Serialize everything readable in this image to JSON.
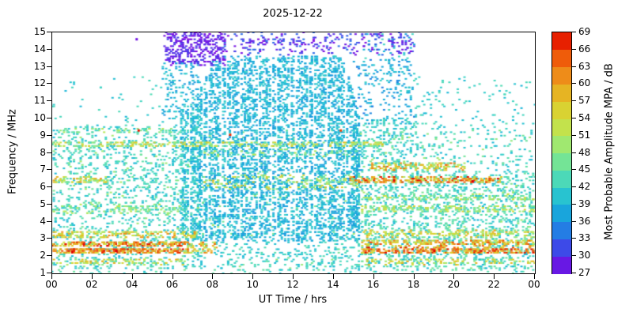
{
  "figure": {
    "background": "#ffffff"
  },
  "chart_data": {
    "type": "scatter",
    "title": "2025-12-22",
    "xlabel": "UT Time / hrs",
    "ylabel": "Frequency / MHz",
    "xlim": [
      0,
      24
    ],
    "ylim": [
      1,
      15
    ],
    "xtick_labels": [
      "00",
      "02",
      "04",
      "06",
      "08",
      "10",
      "12",
      "14",
      "16",
      "18",
      "20",
      "22",
      "00"
    ],
    "xtick_values": [
      0,
      2,
      4,
      6,
      8,
      10,
      12,
      14,
      16,
      18,
      20,
      22,
      24
    ],
    "ytick_labels": [
      "1",
      "2",
      "3",
      "4",
      "5",
      "6",
      "7",
      "8",
      "9",
      "10",
      "11",
      "12",
      "13",
      "14",
      "15"
    ],
    "ytick_values": [
      1,
      2,
      3,
      4,
      5,
      6,
      7,
      8,
      9,
      10,
      11,
      12,
      13,
      14,
      15
    ],
    "grid": false,
    "legend": false,
    "marker": {
      "w": 3,
      "h": 2
    },
    "colorbar": {
      "label": "Most Probable Amplitude MPA / dB",
      "min": 27,
      "max": 69,
      "tick_values": [
        27,
        30,
        33,
        36,
        39,
        42,
        45,
        48,
        51,
        54,
        57,
        60,
        63,
        66,
        69
      ],
      "tick_labels": [
        "27",
        "30",
        "33",
        "36",
        "39",
        "42",
        "45",
        "48",
        "51",
        "54",
        "57",
        "60",
        "63",
        "66",
        "69"
      ],
      "stops": [
        [
          27,
          "#8000e0"
        ],
        [
          30,
          "#5030e8"
        ],
        [
          33,
          "#2a64e8"
        ],
        [
          36,
          "#1e96e0"
        ],
        [
          39,
          "#14b4d8"
        ],
        [
          42,
          "#3cd2c8"
        ],
        [
          45,
          "#5ce0a8"
        ],
        [
          48,
          "#8ce884"
        ],
        [
          51,
          "#b4e85c"
        ],
        [
          54,
          "#d2dc3c"
        ],
        [
          57,
          "#e0c828"
        ],
        [
          60,
          "#eca01e"
        ],
        [
          63,
          "#f07814"
        ],
        [
          66,
          "#ee4000"
        ],
        [
          69,
          "#e00000"
        ]
      ]
    },
    "regions": [
      {
        "name": "background-left",
        "x": [
          0,
          7.6
        ],
        "y": [
          1.2,
          9.6
        ],
        "n": 1400,
        "db": [
          39,
          45
        ],
        "stripe": 8
      },
      {
        "name": "background-right-low",
        "x": [
          15.2,
          24
        ],
        "y": [
          1.2,
          7.0
        ],
        "n": 1600,
        "db": [
          39,
          46
        ],
        "stripe": 8
      },
      {
        "name": "background-right-mid",
        "x": [
          15.2,
          18.2
        ],
        "y": [
          7.0,
          10.0
        ],
        "n": 260,
        "db": [
          39,
          45
        ]
      },
      {
        "name": "background-right-upper",
        "x": [
          18.2,
          24
        ],
        "y": [
          7.0,
          9.8
        ],
        "n": 150,
        "db": [
          39,
          45
        ]
      },
      {
        "name": "green-sprinkle",
        "x": [
          0,
          24
        ],
        "y": [
          1.2,
          9.4
        ],
        "n": 520,
        "db": [
          44,
          50
        ]
      },
      {
        "name": "sparse-high-left",
        "x": [
          0,
          5.6
        ],
        "y": [
          9.6,
          12.4
        ],
        "n": 40,
        "db": [
          39,
          44
        ]
      },
      {
        "name": "sparse-high-right",
        "x": [
          15.5,
          18.0
        ],
        "y": [
          9.6,
          15.0
        ],
        "n": 150,
        "db": [
          36,
          43
        ]
      },
      {
        "name": "sparse-high-right2",
        "x": [
          18.0,
          19.5
        ],
        "y": [
          9.6,
          12.5
        ],
        "n": 40,
        "db": [
          39,
          44
        ]
      },
      {
        "name": "sparse-high-far-right",
        "x": [
          19.5,
          24
        ],
        "y": [
          9.6,
          12.4
        ],
        "n": 55,
        "db": [
          39,
          44
        ]
      },
      {
        "name": "dome-core",
        "x": [
          7.3,
          15.3
        ],
        "y": [
          2.9,
          13.6
        ],
        "n": 5200,
        "db": [
          36,
          42
        ],
        "stripe": 14,
        "envelope": [
          [
            7.3,
            11.5
          ],
          [
            8.0,
            13.4
          ],
          [
            8.6,
            13.7
          ],
          [
            14.3,
            13.7
          ],
          [
            14.9,
            12.0
          ],
          [
            15.3,
            10.0
          ]
        ]
      },
      {
        "name": "dome-onset",
        "x": [
          6.4,
          7.3
        ],
        "y": [
          2.9,
          10.8
        ],
        "n": 420,
        "db": [
          37,
          43
        ],
        "stripe": 10
      },
      {
        "name": "dome-left-top",
        "x": [
          5.5,
          7.3
        ],
        "y": [
          10.0,
          13.3
        ],
        "n": 150,
        "db": [
          36,
          42
        ]
      },
      {
        "name": "below-dome-sparse",
        "x": [
          8.0,
          15.3
        ],
        "y": [
          1.2,
          2.9
        ],
        "n": 230,
        "db": [
          39,
          44
        ]
      },
      {
        "name": "purple-patch",
        "x": [
          5.6,
          8.6
        ],
        "y": [
          13.1,
          15.0
        ],
        "n": 330,
        "db": [
          27,
          31
        ]
      },
      {
        "name": "purple-top-band",
        "x": [
          8.6,
          18.0
        ],
        "y": [
          13.7,
          15.0
        ],
        "n": 250,
        "db": [
          27,
          34
        ]
      },
      {
        "name": "dome-right-edge",
        "x": [
          15.0,
          18.0
        ],
        "y": [
          10.0,
          13.5
        ],
        "n": 80,
        "db": [
          34,
          40
        ]
      },
      {
        "name": "red-band-2.3-left",
        "x": [
          0,
          6.6
        ],
        "y": [
          2.15,
          2.45
        ],
        "n": 260,
        "db": [
          54,
          69
        ]
      },
      {
        "name": "red-band-2.7-left",
        "x": [
          0,
          6.6
        ],
        "y": [
          2.55,
          2.85
        ],
        "n": 210,
        "db": [
          52,
          69
        ]
      },
      {
        "name": "red-band-2.x-mid",
        "x": [
          6.6,
          8.2
        ],
        "y": [
          2.15,
          2.85
        ],
        "n": 60,
        "db": [
          48,
          64
        ]
      },
      {
        "name": "orange-band-3.2-left",
        "x": [
          0,
          7.2
        ],
        "y": [
          3.05,
          3.45
        ],
        "n": 170,
        "db": [
          48,
          62
        ]
      },
      {
        "name": "red-band-2.3-right",
        "x": [
          15.4,
          24
        ],
        "y": [
          2.15,
          2.5
        ],
        "n": 300,
        "db": [
          54,
          69
        ]
      },
      {
        "name": "red-band-2.75-right",
        "x": [
          15.4,
          24
        ],
        "y": [
          2.6,
          2.95
        ],
        "n": 230,
        "db": [
          50,
          66
        ]
      },
      {
        "name": "orange-band-3.3-right",
        "x": [
          15.4,
          24
        ],
        "y": [
          3.1,
          3.5
        ],
        "n": 170,
        "db": [
          46,
          60
        ]
      },
      {
        "name": "orange-band-1.7-left",
        "x": [
          0,
          6.5
        ],
        "y": [
          1.5,
          1.85
        ],
        "n": 90,
        "db": [
          46,
          60
        ]
      },
      {
        "name": "orange-band-1.7-right",
        "x": [
          15.5,
          24
        ],
        "y": [
          1.5,
          1.85
        ],
        "n": 90,
        "db": [
          46,
          60
        ]
      },
      {
        "name": "red-band-6.4-right",
        "x": [
          14.8,
          22.3
        ],
        "y": [
          6.25,
          6.6
        ],
        "n": 260,
        "db": [
          50,
          69
        ]
      },
      {
        "name": "orange-band-6.4-left",
        "x": [
          0,
          2.8
        ],
        "y": [
          6.25,
          6.6
        ],
        "n": 70,
        "db": [
          46,
          62
        ]
      },
      {
        "name": "orange-band-7.2-right",
        "x": [
          15.8,
          20.5
        ],
        "y": [
          7.0,
          7.4
        ],
        "n": 140,
        "db": [
          46,
          64
        ]
      },
      {
        "name": "yellow-band-8.5",
        "x": [
          0,
          16.5
        ],
        "y": [
          8.35,
          8.65
        ],
        "n": 280,
        "db": [
          44,
          58
        ]
      },
      {
        "name": "band-9.3-left",
        "x": [
          0.5,
          6.0
        ],
        "y": [
          9.15,
          9.45
        ],
        "n": 55,
        "db": [
          42,
          52
        ]
      },
      {
        "name": "green-band-4.8-right",
        "x": [
          15.4,
          24
        ],
        "y": [
          4.55,
          4.95
        ],
        "n": 150,
        "db": [
          44,
          56
        ]
      },
      {
        "name": "green-band-5.4-right",
        "x": [
          15.4,
          24
        ],
        "y": [
          5.25,
          5.6
        ],
        "n": 130,
        "db": [
          43,
          54
        ]
      },
      {
        "name": "green-band-4.8-left",
        "x": [
          0,
          6.6
        ],
        "y": [
          4.5,
          5.0
        ],
        "n": 110,
        "db": [
          42,
          52
        ]
      },
      {
        "name": "dome-warm-6",
        "x": [
          7.5,
          15.3
        ],
        "y": [
          5.9,
          6.7
        ],
        "n": 150,
        "db": [
          44,
          58
        ]
      },
      {
        "name": "dome-warm-8",
        "x": [
          7.5,
          15.3
        ],
        "y": [
          7.8,
          8.2
        ],
        "n": 60,
        "db": [
          44,
          52
        ]
      },
      {
        "name": "bottom-sparse",
        "x": [
          0,
          24
        ],
        "y": [
          1.0,
          1.2
        ],
        "n": 60,
        "db": [
          40,
          46
        ]
      }
    ],
    "points": [
      [
        4.3,
        9.3,
        68
      ],
      [
        8.85,
        9.05,
        67
      ],
      [
        14.35,
        9.3,
        66
      ],
      [
        17.0,
        6.4,
        69
      ],
      [
        20.9,
        6.35,
        69
      ],
      [
        1.0,
        2.25,
        69
      ],
      [
        3.2,
        2.3,
        69
      ],
      [
        19.0,
        2.3,
        69
      ],
      [
        4.2,
        14.6,
        28
      ]
    ]
  }
}
